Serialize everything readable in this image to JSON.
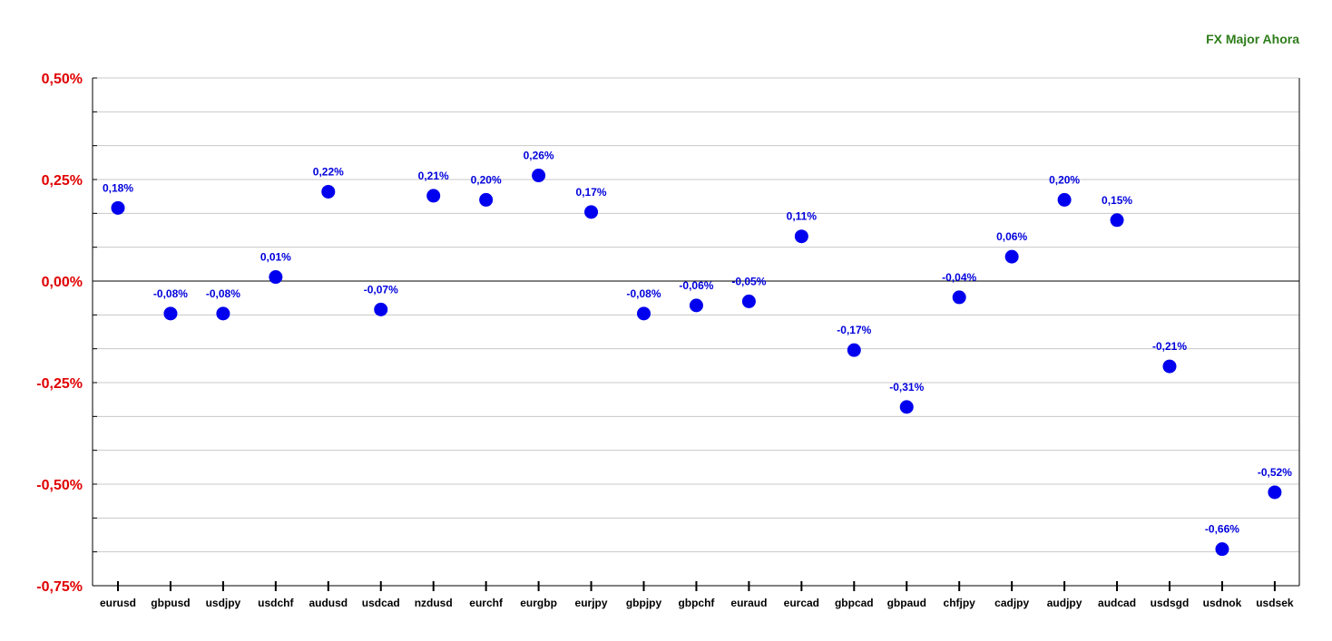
{
  "colors": {
    "title": "#2e7d1a",
    "y_tick_label": "#e00000",
    "marker": "#0000ee",
    "data_label": "#0000dd",
    "grid": "#c8c8c8",
    "zero_line": "#000000",
    "axis": "#000000"
  },
  "chart_data": {
    "type": "scatter",
    "title": "FX Major Ahora",
    "xlabel": "",
    "ylabel": "",
    "ylim": [
      -0.75,
      0.5
    ],
    "y_ticks": [
      0.5,
      0.25,
      0.0,
      -0.25,
      -0.5,
      -0.75
    ],
    "y_tick_labels": [
      "0,50%",
      "0,25%",
      "0,00%",
      "-0,25%",
      "-0,50%",
      "-0,75%"
    ],
    "grid": true,
    "legend": "none",
    "categories": [
      "eurusd",
      "gbpusd",
      "usdjpy",
      "usdchf",
      "audusd",
      "usdcad",
      "nzdusd",
      "eurchf",
      "eurgbp",
      "eurjpy",
      "gbpjpy",
      "gbpchf",
      "euraud",
      "eurcad",
      "gbpcad",
      "gbpaud",
      "chfjpy",
      "cadjpy",
      "audjpy",
      "audcad",
      "usdsgd",
      "usdnok",
      "usdsek"
    ],
    "values": [
      0.18,
      -0.08,
      -0.08,
      0.01,
      0.22,
      -0.07,
      0.21,
      0.2,
      0.26,
      0.17,
      -0.08,
      -0.06,
      -0.05,
      0.11,
      -0.17,
      -0.31,
      -0.04,
      0.06,
      0.2,
      0.15,
      -0.21,
      -0.66,
      -0.52
    ],
    "value_labels": [
      "0,18%",
      "-0,08%",
      "-0,08%",
      "0,01%",
      "0,22%",
      "-0,07%",
      "0,21%",
      "0,20%",
      "0,26%",
      "0,17%",
      "-0,08%",
      "-0,06%",
      "-0,05%",
      "0,11%",
      "-0,17%",
      "-0,31%",
      "-0,04%",
      "0,06%",
      "0,20%",
      "0,15%",
      "-0,21%",
      "-0,66%",
      "-0,52%"
    ]
  }
}
